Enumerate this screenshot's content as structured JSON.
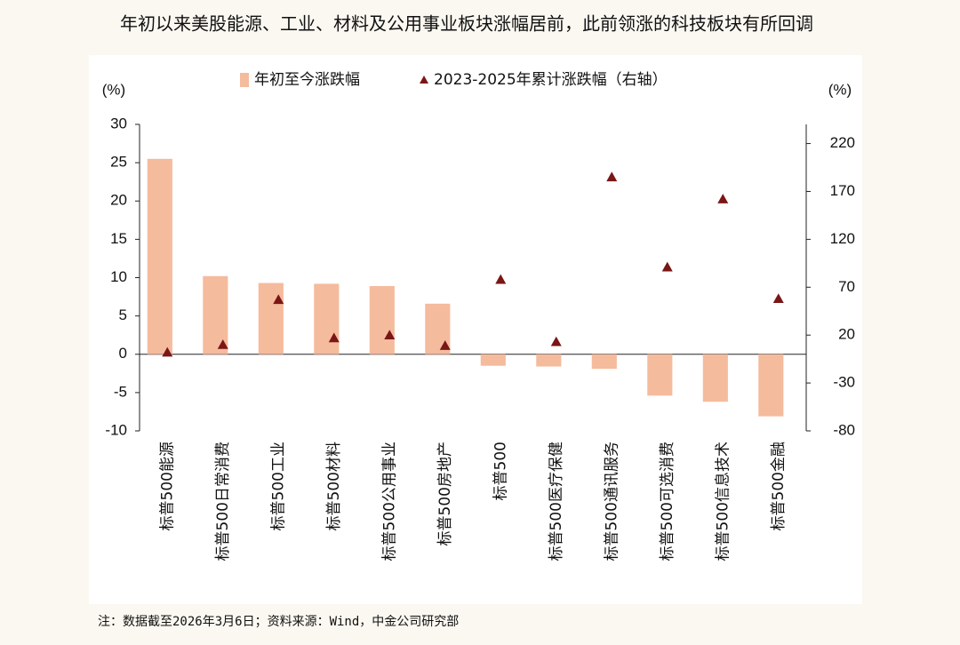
{
  "chart_data": {
    "type": "bar",
    "title": "年初以来美股能源、工业、材料及公用事业板块涨幅居前，此前领涨的科技板块有所回调",
    "y_label": "(%)",
    "y2_label": "(%)",
    "categories": [
      "标普500能源",
      "标普500日常消费",
      "标普500工业",
      "标普500材料",
      "标普500公用事业",
      "标普500房地产",
      "标普500",
      "标普500医疗保健",
      "标普500通讯服务",
      "标普500可选消费",
      "标普500信息技术",
      "标普500金融"
    ],
    "series": [
      {
        "name": "年初至今涨跌幅",
        "type": "bar",
        "color": "#f5bb9d",
        "values": [
          25.5,
          10.2,
          9.3,
          9.2,
          8.9,
          6.6,
          -1.5,
          -1.6,
          -1.9,
          -5.4,
          -6.2,
          -8.1
        ]
      },
      {
        "name": "2023-2025年累计涨跌幅（右轴）",
        "type": "scatter",
        "axis": "y2",
        "color": "#7a1616",
        "values": [
          2,
          10,
          57,
          17,
          20,
          9,
          78,
          13,
          185,
          91,
          162,
          58
        ]
      }
    ],
    "ylim": [
      -10,
      30
    ],
    "yticks": [
      -10,
      -5,
      0,
      5,
      10,
      15,
      20,
      25,
      30
    ],
    "y2lim": [
      -80,
      240
    ],
    "y2ticks": [
      -80,
      -30,
      20,
      70,
      120,
      170,
      220
    ],
    "note": "注：数据截至2026年3月6日；资料来源：Wind，中金公司研究部"
  }
}
